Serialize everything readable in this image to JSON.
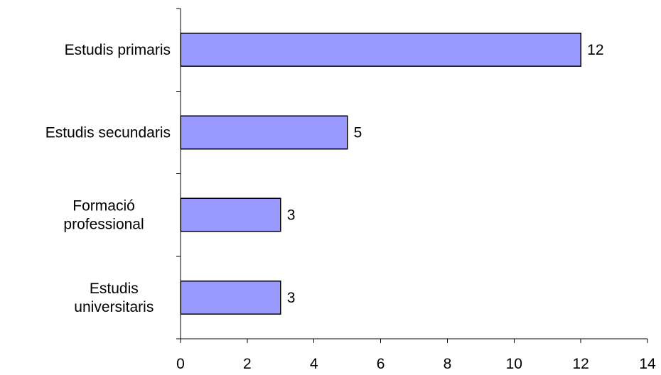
{
  "chart_data": {
    "type": "bar",
    "orientation": "horizontal",
    "categories": [
      [
        "Estudis primaris"
      ],
      [
        "Estudis secundaris"
      ],
      [
        "Formació",
        "professional"
      ],
      [
        "Estudis",
        "universitaris"
      ]
    ],
    "values": [
      12,
      5,
      3,
      3
    ],
    "data_labels": [
      "12",
      "5",
      "3",
      "3"
    ],
    "xlim": [
      0,
      14
    ],
    "x_ticks": [
      "0",
      "2",
      "4",
      "6",
      "8",
      "10",
      "12",
      "14"
    ],
    "bar_color": "#9999ff",
    "grid": false,
    "legend": "none",
    "title": "",
    "xlabel": "",
    "ylabel": ""
  }
}
